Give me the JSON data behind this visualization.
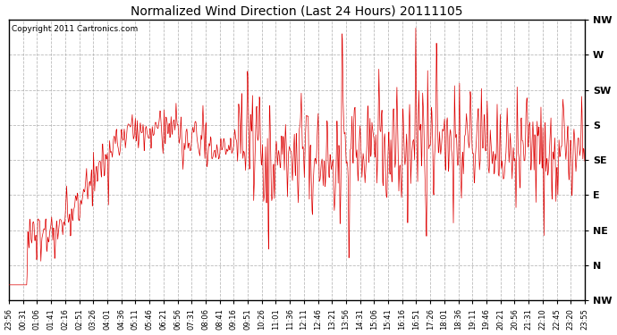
{
  "title": "Normalized Wind Direction (Last 24 Hours) 20111105",
  "copyright_text": "Copyright 2011 Cartronics.com",
  "line_color": "#dd0000",
  "background_color": "#ffffff",
  "plot_bg_color": "#ffffff",
  "grid_color": "#aaaaaa",
  "y_ticks": [
    0,
    45,
    90,
    135,
    180,
    225,
    270,
    315,
    360
  ],
  "y_labels": [
    "NW",
    "N",
    "NE",
    "E",
    "SE",
    "S",
    "SW",
    "W",
    "NW"
  ],
  "ylim": [
    0,
    360
  ],
  "x_tick_labels": [
    "23:56",
    "00:31",
    "01:06",
    "01:41",
    "02:16",
    "02:51",
    "03:26",
    "04:01",
    "04:36",
    "05:11",
    "05:46",
    "06:21",
    "06:56",
    "07:31",
    "08:06",
    "08:41",
    "09:16",
    "09:51",
    "10:26",
    "11:01",
    "11:36",
    "12:11",
    "12:46",
    "13:21",
    "13:56",
    "14:31",
    "15:06",
    "15:41",
    "16:16",
    "16:51",
    "17:26",
    "18:01",
    "18:36",
    "19:11",
    "19:46",
    "20:21",
    "20:56",
    "21:31",
    "22:10",
    "22:45",
    "23:20",
    "23:55"
  ],
  "figsize": [
    6.9,
    3.75
  ],
  "dpi": 100
}
